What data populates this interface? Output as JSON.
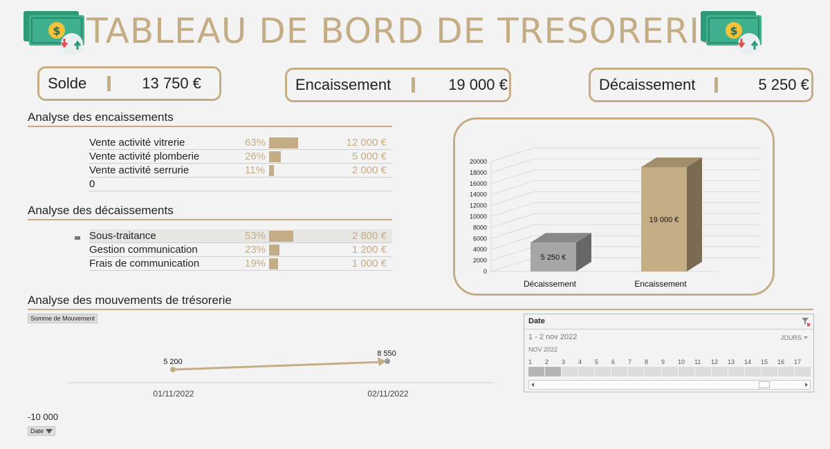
{
  "header": {
    "title": "TABLEAU DE BORD DE TRESORERIE"
  },
  "kpis": {
    "solde": {
      "label": "Solde",
      "value": "13 750 €"
    },
    "encaissement": {
      "label": "Encaissement",
      "value": "19 000 €"
    },
    "decaissement": {
      "label": "Décaissement",
      "value": "5 250 €"
    }
  },
  "encaissements": {
    "title": "Analyse des encaissements",
    "rows": [
      {
        "name": "Vente activité vitrerie",
        "pct": "63%",
        "fraction": 0.63,
        "amount": "12 000 €"
      },
      {
        "name": "Vente activité plomberie",
        "pct": "26%",
        "fraction": 0.26,
        "amount": "5 000 €"
      },
      {
        "name": "Vente activité serrurie",
        "pct": "11%",
        "fraction": 0.11,
        "amount": "2 000 €"
      },
      {
        "name": "0",
        "pct": "",
        "fraction": 0,
        "amount": ""
      }
    ]
  },
  "decaissements": {
    "title": "Analyse des décaissements",
    "rows": [
      {
        "name": "Sous-traitance",
        "pct": "53%",
        "fraction": 0.53,
        "amount": "2 800 €"
      },
      {
        "name": "Gestion communication",
        "pct": "23%",
        "fraction": 0.23,
        "amount": "1 200 €"
      },
      {
        "name": "Frais de communication",
        "pct": "19%",
        "fraction": 0.19,
        "amount": "1 000 €"
      }
    ]
  },
  "chart_data": [
    {
      "type": "bar",
      "categories": [
        "Décaissement",
        "Encaissement"
      ],
      "values": [
        5250,
        19000
      ],
      "data_labels": [
        "5 250 €",
        "19 000 €"
      ],
      "yticks": [
        "0",
        "2000",
        "4000",
        "6000",
        "8000",
        "10000",
        "12000",
        "14000",
        "16000",
        "18000",
        "20000"
      ],
      "ylim": [
        0,
        20000
      ],
      "colors": [
        "#a6a6a6",
        "#c4ad85"
      ]
    },
    {
      "type": "line",
      "title": "Analyse des mouvements de trésorerie",
      "field_button": "Somme de Mouvement",
      "x": [
        "01/11/2022",
        "02/11/2022"
      ],
      "values": [
        5200,
        8550
      ],
      "data_labels": [
        "5 200",
        "8 550"
      ],
      "axis_min_label": "-10 000",
      "axis_button": "Date",
      "color": "#c4ad85"
    }
  ],
  "slicer": {
    "title": "Date",
    "range": "1 - 2 nov 2022",
    "level": "JOURS",
    "month": "NOV 2022",
    "days": [
      "1",
      "2",
      "3",
      "4",
      "5",
      "6",
      "7",
      "8",
      "9",
      "10",
      "11",
      "12",
      "13",
      "14",
      "15",
      "16",
      "17"
    ],
    "selected_days": 2
  },
  "colors": {
    "accent": "#c4ad85",
    "grey_bar": "#a6a6a6",
    "background": "#f3f3f3"
  }
}
